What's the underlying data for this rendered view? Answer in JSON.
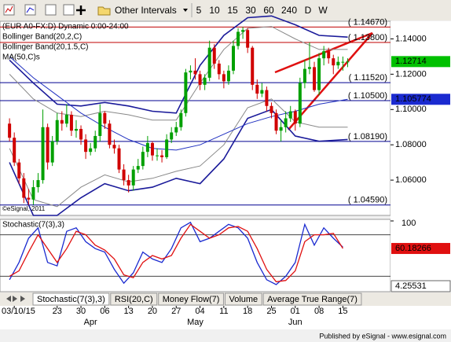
{
  "toolbar": {
    "menu": "Other Intervals",
    "intervals": [
      "5",
      "10",
      "15",
      "30",
      "60",
      "240",
      "D",
      "W"
    ]
  },
  "tabs": [
    "Stochastic(7(3),3)",
    "RSI(20,C)",
    "Money Flow(7)",
    "Volume",
    "Average True Range(7)"
  ],
  "footer": "Published by eSignal - www.esignal.com",
  "chart_data": [
    {
      "type": "candlestick",
      "title": "(EUR A0-FX:D) Dynamic 0:00-24:00",
      "watermark": "©eSignal, 2011",
      "up_color": "#00a000",
      "down_color": "#d00000",
      "xlim": [
        -2,
        80
      ],
      "ylim": [
        1.04,
        1.15
      ],
      "yticks": [
        {
          "value": 1.14,
          "label": "1.14000"
        },
        {
          "value": 1.12,
          "label": "1.12000"
        },
        {
          "value": 1.1,
          "label": "1.10000"
        },
        {
          "value": 1.08,
          "label": "1.08000"
        },
        {
          "value": 1.06,
          "label": "1.06000"
        }
      ],
      "xticks": [
        {
          "value": 1,
          "label": "03/10/15"
        },
        {
          "value": 10,
          "label": "23"
        },
        {
          "value": 15,
          "label": "30"
        },
        {
          "value": 20,
          "label": "06"
        },
        {
          "value": 25,
          "label": "13"
        },
        {
          "value": 30,
          "label": "20"
        },
        {
          "value": 35,
          "label": "27"
        },
        {
          "value": 40,
          "label": "04"
        },
        {
          "value": 45,
          "label": "11"
        },
        {
          "value": 50,
          "label": "18"
        },
        {
          "value": 55,
          "label": "25"
        },
        {
          "value": 60,
          "label": "01"
        },
        {
          "value": 65,
          "label": "08"
        },
        {
          "value": 70,
          "label": "15"
        }
      ],
      "month_ticks": [
        {
          "value": 17,
          "label": "Apr"
        },
        {
          "value": 39,
          "label": "May"
        },
        {
          "value": 60,
          "label": "Jun"
        }
      ],
      "open": [
        1.092,
        1.084,
        1.07,
        1.061,
        1.05,
        1.049,
        1.056,
        1.06,
        1.09,
        1.07,
        1.082,
        1.094,
        1.092,
        1.097,
        1.088,
        1.089,
        1.083,
        1.076,
        1.078,
        1.085,
        1.098,
        1.092,
        1.08,
        1.078,
        1.066,
        1.06,
        1.057,
        1.066,
        1.068,
        1.076,
        1.081,
        1.074,
        1.074,
        1.073,
        1.083,
        1.087,
        1.09,
        1.098,
        1.121,
        1.122,
        1.12,
        1.114,
        1.118,
        1.135,
        1.126,
        1.12,
        1.116,
        1.122,
        1.136,
        1.144,
        1.145,
        1.135,
        1.114,
        1.109,
        1.111,
        1.102,
        1.098,
        1.088,
        1.09,
        1.095,
        1.099,
        1.092,
        1.115,
        1.123,
        1.124,
        1.111,
        1.129,
        1.133,
        1.129,
        1.125,
        1.127,
        1.127
      ],
      "high": [
        1.095,
        1.087,
        1.072,
        1.064,
        1.055,
        1.06,
        1.064,
        1.1,
        1.092,
        1.085,
        1.098,
        1.099,
        1.103,
        1.099,
        1.094,
        1.091,
        1.086,
        1.081,
        1.088,
        1.103,
        1.099,
        1.094,
        1.083,
        1.08,
        1.069,
        1.063,
        1.068,
        1.072,
        1.079,
        1.085,
        1.082,
        1.078,
        1.077,
        1.086,
        1.09,
        1.093,
        1.1,
        1.123,
        1.125,
        1.129,
        1.122,
        1.12,
        1.139,
        1.137,
        1.128,
        1.122,
        1.125,
        1.139,
        1.146,
        1.1467,
        1.146,
        1.136,
        1.117,
        1.115,
        1.113,
        1.104,
        1.1,
        1.094,
        1.099,
        1.102,
        1.1,
        1.118,
        1.128,
        1.138,
        1.127,
        1.132,
        1.136,
        1.135,
        1.131,
        1.13,
        1.13,
        1.129
      ],
      "low": [
        1.082,
        1.068,
        1.058,
        1.047,
        1.046,
        1.046,
        1.053,
        1.058,
        1.066,
        1.068,
        1.08,
        1.088,
        1.09,
        1.085,
        1.084,
        1.08,
        1.072,
        1.074,
        1.076,
        1.082,
        1.089,
        1.078,
        1.075,
        1.064,
        1.057,
        1.053,
        1.054,
        1.064,
        1.066,
        1.073,
        1.071,
        1.071,
        1.07,
        1.072,
        1.081,
        1.085,
        1.088,
        1.096,
        1.117,
        1.117,
        1.111,
        1.111,
        1.116,
        1.123,
        1.117,
        1.112,
        1.114,
        1.12,
        1.134,
        1.14,
        1.132,
        1.111,
        1.106,
        1.107,
        1.099,
        1.095,
        1.086,
        1.0819,
        1.087,
        1.093,
        1.088,
        1.09,
        1.112,
        1.12,
        1.11,
        1.108,
        1.125,
        1.126,
        1.12,
        1.123,
        1.122,
        1.124
      ],
      "close": [
        1.084,
        1.07,
        1.061,
        1.05,
        1.049,
        1.056,
        1.06,
        1.09,
        1.07,
        1.082,
        1.094,
        1.092,
        1.097,
        1.088,
        1.089,
        1.083,
        1.076,
        1.078,
        1.085,
        1.098,
        1.092,
        1.08,
        1.078,
        1.066,
        1.06,
        1.057,
        1.066,
        1.068,
        1.076,
        1.081,
        1.074,
        1.074,
        1.073,
        1.083,
        1.087,
        1.09,
        1.098,
        1.121,
        1.122,
        1.12,
        1.114,
        1.118,
        1.135,
        1.126,
        1.12,
        1.116,
        1.122,
        1.136,
        1.144,
        1.145,
        1.135,
        1.114,
        1.109,
        1.111,
        1.102,
        1.098,
        1.088,
        1.09,
        1.095,
        1.099,
        1.092,
        1.115,
        1.123,
        1.124,
        1.111,
        1.129,
        1.133,
        1.129,
        1.125,
        1.127,
        1.127,
        1.12714
      ],
      "overlays": [
        {
          "name": "Bollinger Band(20,2,C)",
          "color": "#1a1a9a",
          "x": [
            0,
            5,
            10,
            15,
            20,
            25,
            30,
            35,
            40,
            45,
            50,
            55,
            60,
            65,
            71
          ],
          "upper": [
            1.128,
            1.115,
            1.103,
            1.102,
            1.104,
            1.102,
            1.099,
            1.098,
            1.125,
            1.142,
            1.152,
            1.153,
            1.148,
            1.142,
            1.141
          ],
          "lower": [
            1.07,
            1.04,
            1.04,
            1.05,
            1.058,
            1.054,
            1.056,
            1.061,
            1.058,
            1.072,
            1.095,
            1.1,
            1.085,
            1.082,
            1.083
          ]
        },
        {
          "name": "Bollinger Band(20,1.5,C)",
          "color": "#888888",
          "x": [
            0,
            5,
            10,
            15,
            20,
            25,
            30,
            35,
            40,
            45,
            50,
            55,
            60,
            65,
            71
          ],
          "upper": [
            1.12,
            1.106,
            1.098,
            1.096,
            1.099,
            1.097,
            1.094,
            1.094,
            1.115,
            1.134,
            1.146,
            1.147,
            1.14,
            1.134,
            1.134
          ],
          "lower": [
            1.078,
            1.049,
            1.045,
            1.056,
            1.063,
            1.059,
            1.061,
            1.065,
            1.068,
            1.08,
            1.101,
            1.106,
            1.093,
            1.09,
            1.09
          ]
        },
        {
          "name": "MA(50,C)s",
          "color": "#2030c0",
          "x": [
            0,
            5,
            10,
            15,
            20,
            25,
            30,
            35,
            40,
            45,
            50,
            55,
            60,
            65,
            71
          ],
          "values": [
            1.13,
            1.118,
            1.108,
            1.098,
            1.09,
            1.083,
            1.078,
            1.077,
            1.08,
            1.086,
            1.092,
            1.096,
            1.099,
            1.103,
            1.105774
          ]
        }
      ],
      "levels": [
        {
          "value": 1.1467,
          "label": "( 1.14670)",
          "color": "#c00000"
        },
        {
          "value": 1.138,
          "label": "( 1.13800)",
          "color": "#c00000"
        },
        {
          "value": 1.1152,
          "label": "( 1.11520)",
          "color": "#000090"
        },
        {
          "value": 1.105,
          "label": "( 1.10500)",
          "color": "#000090"
        },
        {
          "value": 1.0819,
          "label": "( 1.08190)",
          "color": "#000090"
        },
        {
          "value": 1.0459,
          "label": "( 1.04590)",
          "color": "#000090"
        }
      ]
    },
    {
      "type": "line",
      "title": "Stochastic(7(3),3)",
      "xlim": [
        -2,
        80
      ],
      "ylim": [
        0,
        100
      ],
      "yticks": [
        100
      ],
      "levels": [
        80,
        20
      ],
      "x": [
        0,
        2,
        4,
        6,
        8,
        10,
        12,
        14,
        16,
        18,
        20,
        22,
        24,
        26,
        28,
        30,
        32,
        34,
        36,
        38,
        40,
        42,
        44,
        46,
        48,
        50,
        52,
        54,
        56,
        58,
        60,
        62,
        64,
        66,
        68,
        70
      ],
      "series": [
        {
          "color": "#1a2ad0",
          "values": [
            15,
            40,
            75,
            90,
            40,
            35,
            85,
            90,
            70,
            60,
            55,
            30,
            10,
            25,
            55,
            45,
            40,
            60,
            90,
            98,
            70,
            75,
            85,
            95,
            90,
            75,
            40,
            15,
            8,
            20,
            40,
            95,
            65,
            90,
            75,
            62
          ]
        },
        {
          "color": "#e01010",
          "values": [
            20,
            28,
            55,
            80,
            60,
            40,
            60,
            85,
            80,
            65,
            58,
            45,
            22,
            18,
            40,
            50,
            45,
            50,
            75,
            95,
            85,
            75,
            80,
            90,
            92,
            85,
            60,
            30,
            12,
            14,
            28,
            70,
            80,
            80,
            82,
            60.18266
          ]
        }
      ],
      "badges": [
        {
          "value": 4.25531,
          "color": "#666666"
        }
      ]
    }
  ]
}
